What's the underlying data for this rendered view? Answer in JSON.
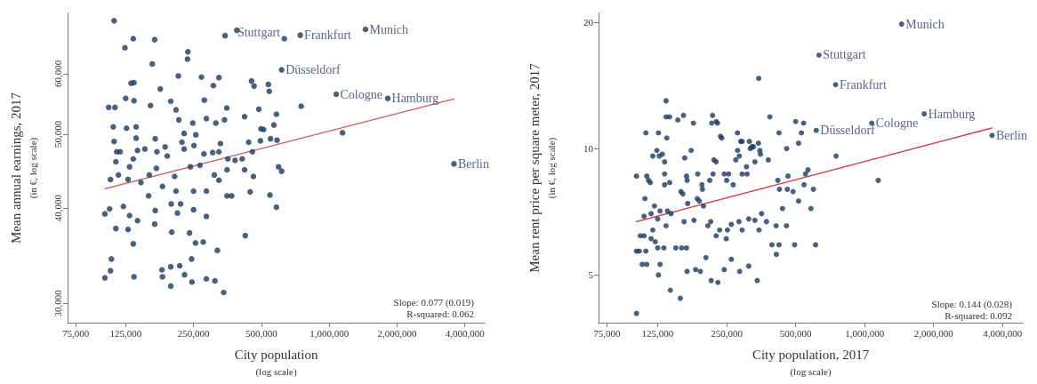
{
  "chart_data": [
    {
      "type": "scatter",
      "xlabel": "City population\n(log scale)",
      "ylabel": "Mean annual earnings, 2017\n(in €, log scale)",
      "log": "xy",
      "marker": "circle",
      "grid": false,
      "xlim": [
        69000,
        4900000
      ],
      "ylim": [
        28300,
        72000
      ],
      "xticks": [
        {
          "value": 75000,
          "label": "75,000"
        },
        {
          "value": 125000,
          "label": "125,000"
        },
        {
          "value": 250000,
          "label": "250,000"
        },
        {
          "value": 500000,
          "label": "500,000"
        },
        {
          "value": 1000000,
          "label": "1,000,000"
        },
        {
          "value": 2000000,
          "label": "2,000,000"
        },
        {
          "value": 4000000,
          "label": "4,000,000"
        }
      ],
      "yticks": [
        {
          "value": 30000,
          "label": "30,000"
        },
        {
          "value": 40000,
          "label": "40,000"
        },
        {
          "value": 50000,
          "label": "50,000"
        },
        {
          "value": 60000,
          "label": "60,000"
        }
      ],
      "series": [
        {
          "color": "#1d3a5e",
          "x": [
            111000,
            389000,
            345000,
            135000,
            168000,
            124000,
            236000,
            235000,
            164000,
            214000,
            271000,
            324000,
            306000,
            178000,
            452000,
            464000,
            537000,
            542000,
            132000,
            136000,
            125000,
            136000,
            198000,
            279000,
            105000,
            112000,
            161000,
            209000,
            351000,
            421000,
            487000,
            583000,
            215000,
            343000,
            285000,
            314000,
            110000,
            126000,
            139000,
            248000,
            568000,
            498000,
            227000,
            256000,
            111000,
            139000,
            169000,
            329000,
            439000,
            495000,
            549000,
            587000,
            222000,
            152000,
            187000,
            114000,
            118000,
            141000,
            113000,
            135000,
            172000,
            191000,
            227000,
            251000,
            278000,
            304000,
            324000,
            355000,
            382000,
            411000,
            456000,
            512000,
            116000,
            130000,
            159000,
            171000,
            206000,
            242000,
            267000,
            309000,
            352000,
            421000,
            461000,
            596000,
            615000,
            107000,
            128000,
            146000,
            182000,
            209000,
            250000,
            285000,
            324000,
            352000,
            369000,
            446000,
            546000,
            158000,
            199000,
            219000,
            169000,
            101000,
            106000,
            122000,
            130000,
            212000,
            250000,
            583000,
            113000,
            128000,
            141000,
            168000,
            200000,
            240000,
            255000,
            285000,
            276000,
            319000,
            424000,
            135000,
            108000,
            107000,
            101000,
            136000,
            181000,
            182000,
            198000,
            217000,
            228000,
            245000,
            246000,
            285000,
            311000,
            198000,
            340000,
            751000,
            1146000,
            632000,
            744000,
            1449000,
            615000,
            1074000,
            1820000,
            3580000
          ],
          "values": [
            70400,
            68400,
            67300,
            66700,
            66500,
            64900,
            64100,
            62700,
            61800,
            59600,
            59400,
            59300,
            57900,
            57300,
            58700,
            57800,
            58100,
            56900,
            58300,
            58400,
            55700,
            55300,
            55200,
            55400,
            54200,
            54200,
            54500,
            53800,
            54100,
            52700,
            53900,
            53100,
            52200,
            52200,
            52400,
            51700,
            51100,
            50900,
            51100,
            51700,
            51400,
            50800,
            50100,
            49900,
            48900,
            49400,
            49300,
            48600,
            48800,
            49000,
            49300,
            49100,
            48800,
            47800,
            48100,
            47400,
            47400,
            47600,
            46000,
            46400,
            47400,
            46800,
            47800,
            48300,
            47100,
            47300,
            47400,
            46400,
            46200,
            46400,
            47400,
            50700,
            44200,
            45300,
            44200,
            45100,
            44000,
            45300,
            45500,
            44200,
            44900,
            44900,
            44000,
            45300,
            44700,
            43600,
            43600,
            43200,
            42700,
            42100,
            42100,
            42100,
            43500,
            41500,
            41500,
            42000,
            41600,
            41500,
            40500,
            40500,
            39700,
            39300,
            39900,
            40200,
            39100,
            39400,
            39800,
            40100,
            37600,
            37500,
            38500,
            38100,
            37200,
            37100,
            36000,
            39000,
            36100,
            35200,
            36800,
            35900,
            34300,
            33100,
            32400,
            32500,
            33200,
            32500,
            33500,
            33600,
            32700,
            34300,
            32000,
            32300,
            32100,
            31600,
            31000,
            54400,
            50200,
            66700,
            67400,
            68600,
            60700,
            56400,
            55700,
            45700
          ]
        },
        {
          "type": "line",
          "marker": "none",
          "color": "#d05454",
          "x": [
            101000,
            3580000
          ],
          "values": [
            42400,
            55600
          ]
        }
      ],
      "annotations": [
        {
          "text": "Stuttgart",
          "x": 632000,
          "y": 66700
        },
        {
          "text": "Frankfurt",
          "x": 744000,
          "y": 67400
        },
        {
          "text": "Munich",
          "x": 1449000,
          "y": 68600
        },
        {
          "text": "Düsseldorf",
          "x": 615000,
          "y": 60700
        },
        {
          "text": "Cologne",
          "x": 1074000,
          "y": 56400
        },
        {
          "text": "Hamburg",
          "x": 1820000,
          "y": 55700
        },
        {
          "text": "Berlin",
          "x": 3580000,
          "y": 45700
        },
        "Slope: 0.077 (0.019)",
        "R-squared: 0.062"
      ]
    },
    {
      "type": "scatter",
      "xlabel": "City population, 2017\n(log scale)",
      "ylabel": "Mean rent price per square meter, 2017\n(in €, log scale)",
      "log": "xy",
      "marker": "circle",
      "grid": false,
      "xlim": [
        69000,
        4900000
      ],
      "ylim": [
        3.85,
        21
      ],
      "xticks": [
        {
          "value": 75000,
          "label": "75,000"
        },
        {
          "value": 125000,
          "label": "125,000"
        },
        {
          "value": 250000,
          "label": "250,000"
        },
        {
          "value": 500000,
          "label": "500,000"
        },
        {
          "value": 1000000,
          "label": "1,000,000"
        },
        {
          "value": 2000000,
          "label": "2,000,000"
        },
        {
          "value": 4000000,
          "label": "4,000,000"
        }
      ],
      "yticks": [
        5,
        10,
        20
      ],
      "series": [
        {
          "color": "#1d3a5e",
          "x": [
            136000,
            136000,
            141000,
            153000,
            162000,
            111000,
            126000,
            137000,
            179000,
            217000,
            225000,
            228000,
            215000,
            235000,
            238000,
            279000,
            288000,
            292000,
            314000,
            344000,
            322000,
            351000,
            386000,
            500000,
            542000,
            530000,
            457000,
            515000,
            423000,
            112000,
            114000,
            116000,
            119000,
            124000,
            127000,
            131000,
            134000,
            134000,
            134000,
            141000,
            158000,
            161000,
            164000,
            167000,
            168000,
            175000,
            187000,
            195000,
            196000,
            211000,
            218000,
            220000,
            225000,
            244000,
            250000,
            255000,
            267000,
            274000,
            279000,
            284000,
            292000,
            305000,
            307000,
            317000,
            327000,
            332000,
            349000,
            380000,
            418000,
            425000,
            460000,
            463000,
            487000,
            515000,
            544000,
            566000,
            552000,
            598000,
            583000,
            110000,
            109000,
            117000,
            121000,
            125000,
            128000,
            138000,
            143000,
            109000,
            119000,
            117000,
            122000,
            125000,
            133000,
            136000,
            150000,
            159000,
            167000,
            163000,
            169000,
            180000,
            186000,
            190000,
            198000,
            207000,
            213000,
            225000,
            233000,
            249000,
            252000,
            262000,
            283000,
            292000,
            312000,
            332000,
            355000,
            373000,
            346000,
            394000,
            423000,
            456000,
            438000,
            495000,
            611000,
            101000,
            104000,
            107000,
            112000,
            111000,
            126000,
            128000,
            142000,
            157000,
            168000,
            183000,
            192000,
            203000,
            214000,
            229000,
            244000,
            262000,
            285000,
            312000,
            340000,
            101000,
            101000,
            105000,
            412000,
            411000,
            345000,
            751000,
            1146000,
            1450000,
            632000,
            747000,
            1820000,
            1074000,
            615000,
            3600000
          ],
          "values": [
            13.0,
            11.9,
            11.9,
            11.7,
            12.0,
            10.9,
            10.9,
            10.6,
            11.5,
            12.0,
            11.6,
            11.5,
            11.5,
            10.7,
            10.6,
            10.9,
            10.4,
            10.4,
            10.4,
            10.3,
            10.1,
            9.7,
            11.9,
            11.6,
            11.5,
            10.9,
            10.0,
            10.3,
            10.9,
            8.6,
            8.4,
            8.3,
            9.6,
            9.9,
            9.6,
            9.7,
            9.3,
            8.7,
            8.2,
            8.3,
            7.9,
            7.8,
            9.5,
            8.6,
            8.4,
            9.9,
            8.7,
            8.2,
            8.0,
            8.4,
            8.7,
            9.4,
            9.3,
            8.7,
            8.4,
            8.7,
            8.2,
            9.4,
            9.9,
            9.6,
            8.7,
            9.05,
            8.7,
            10.0,
            10.1,
            9.3,
            9.9,
            9.4,
            8.4,
            8.0,
            8.0,
            8.6,
            7.9,
            7.5,
            8.2,
            8.9,
            8.7,
            8.0,
            7.2,
            7.6,
            6.9,
            7.0,
            7.3,
            6.8,
            7.1,
            7.1,
            7.0,
            6.2,
            6.4,
            6.1,
            6.0,
            5.8,
            5.8,
            6.55,
            5.8,
            5.8,
            5.8,
            6.7,
            7.4,
            6.75,
            7.6,
            7.5,
            7.3,
            6.55,
            6.7,
            6.2,
            6.4,
            6.1,
            6.4,
            6.6,
            6.7,
            6.4,
            6.8,
            6.75,
            7.0,
            6.7,
            6.4,
            5.9,
            5.9,
            6.55,
            7.2,
            5.9,
            5.9,
            5.7,
            5.7,
            5.3,
            5.3,
            5.7,
            5.0,
            5.3,
            4.6,
            4.4,
            5.1,
            5.15,
            5.1,
            5.5,
            4.85,
            4.8,
            5.15,
            5.45,
            5.1,
            5.25,
            4.85,
            4.05,
            8.6,
            6.2,
            5.6,
            6.55,
            14.7,
            9.6,
            8.4,
            19.8,
            16.7,
            14.2,
            12.1,
            11.5,
            11.05,
            10.75
          ]
        },
        {
          "type": "line",
          "marker": "none",
          "color": "#d42a2a",
          "x": [
            101000,
            3600000
          ],
          "values": [
            6.7,
            11.2
          ]
        }
      ],
      "annotations": [
        {
          "text": "Munich",
          "x": 1450000,
          "y": 19.8
        },
        {
          "text": "Stuttgart",
          "x": 632000,
          "y": 16.7
        },
        {
          "text": "Frankfurt",
          "x": 747000,
          "y": 14.2
        },
        {
          "text": "Hamburg",
          "x": 1820000,
          "y": 12.1
        },
        {
          "text": "Cologne",
          "x": 1074000,
          "y": 11.5
        },
        {
          "text": "Düsseldorf",
          "x": 615000,
          "y": 11.05
        },
        {
          "text": "Berlin",
          "x": 3600000,
          "y": 10.75
        },
        "Slope: 0.144 (0.028)",
        "R-squared: 0.092"
      ]
    }
  ]
}
